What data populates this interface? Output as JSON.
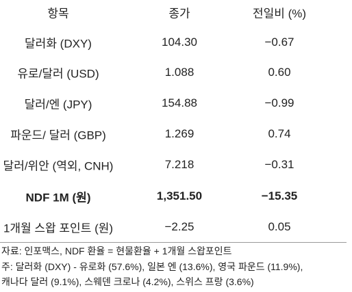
{
  "table": {
    "header": [
      "항목",
      "종가",
      "전일비 (%)"
    ],
    "rows": [
      [
        "달러화 (DXY)",
        "104.30",
        "−0.67"
      ],
      [
        "유로/달러 (USD)",
        "1.088",
        "0.60"
      ],
      [
        "달러/엔 (JPY)",
        "154.88",
        "−0.99"
      ],
      [
        "파운드/ 달러 (GBP)",
        "1.269",
        "0.74"
      ],
      [
        "달러/위안 (역외, CNH)",
        "7.218",
        "−0.31"
      ],
      [
        "NDF 1M (원)",
        "1,351.50",
        "−15.35"
      ],
      [
        "1개월 스왑 포인트 (원)",
        "−2.25",
        "0.05"
      ]
    ]
  },
  "notes": [
    "자료: 인포맥스, NDF 환율 = 현물환율 + 1개월 스왑포인트",
    "주: 달러화 (DXY) - 유로화 (57.6%), 일본 엔 (13.6%), 영국 파운드 (11.9%),",
    "캐나다 달러 (9.1%), 스웨덴 크로나 (4.2%), 스위스 프랑 (3.6%)"
  ]
}
